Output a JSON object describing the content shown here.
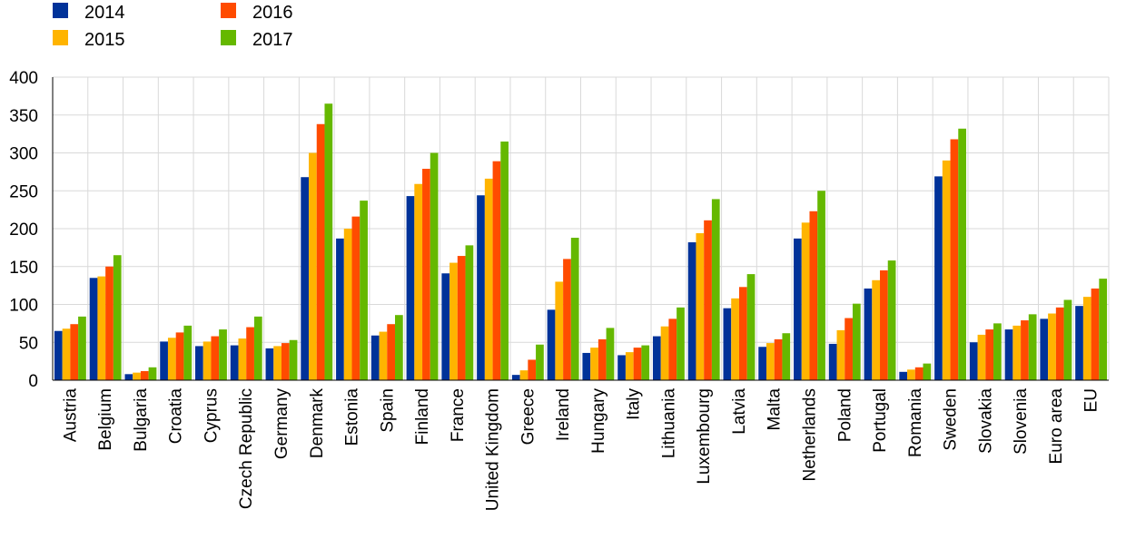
{
  "chart_data": {
    "type": "bar",
    "title": "",
    "xlabel": "",
    "ylabel": "",
    "ylim": [
      0,
      400
    ],
    "yticks": [
      0,
      50,
      100,
      150,
      200,
      250,
      300,
      350,
      400
    ],
    "grid": true,
    "legend_position": "top-left",
    "categories": [
      "Austria",
      "Belgium",
      "Bulgaria",
      "Croatia",
      "Cyprus",
      "Czech Republic",
      "Germany",
      "Denmark",
      "Estonia",
      "Spain",
      "Finland",
      "France",
      "United Kingdom",
      "Greece",
      "Ireland",
      "Hungary",
      "Italy",
      "Lithuania",
      "Luxembourg",
      "Latvia",
      "Malta",
      "Netherlands",
      "Poland",
      "Portugal",
      "Romania",
      "Sweden",
      "Slovakia",
      "Slovenia",
      "Euro area",
      "EU"
    ],
    "series": [
      {
        "name": "2014",
        "color": "#003299",
        "values": [
          65,
          135,
          8,
          51,
          45,
          46,
          42,
          268,
          187,
          59,
          243,
          141,
          244,
          7,
          93,
          36,
          33,
          58,
          182,
          95,
          44,
          187,
          48,
          121,
          11,
          269,
          50,
          67,
          81,
          98
        ]
      },
      {
        "name": "2015",
        "color": "#FFB400",
        "values": [
          68,
          137,
          10,
          56,
          51,
          55,
          45,
          300,
          200,
          64,
          259,
          155,
          266,
          13,
          130,
          43,
          37,
          71,
          194,
          108,
          49,
          208,
          66,
          132,
          14,
          290,
          60,
          72,
          88,
          110
        ]
      },
      {
        "name": "2016",
        "color": "#FF4B00",
        "values": [
          74,
          150,
          12,
          63,
          58,
          70,
          49,
          338,
          216,
          74,
          279,
          164,
          289,
          27,
          160,
          54,
          43,
          81,
          211,
          123,
          54,
          223,
          82,
          145,
          17,
          318,
          67,
          79,
          96,
          121
        ]
      },
      {
        "name": "2017",
        "color": "#65B800",
        "values": [
          84,
          165,
          17,
          72,
          67,
          84,
          53,
          365,
          237,
          86,
          300,
          178,
          315,
          47,
          188,
          69,
          46,
          96,
          239,
          140,
          62,
          250,
          101,
          158,
          22,
          332,
          75,
          87,
          106,
          134
        ]
      }
    ]
  },
  "styles": {
    "grid_color": "#D9D9D9",
    "axis_color": "#000000"
  }
}
